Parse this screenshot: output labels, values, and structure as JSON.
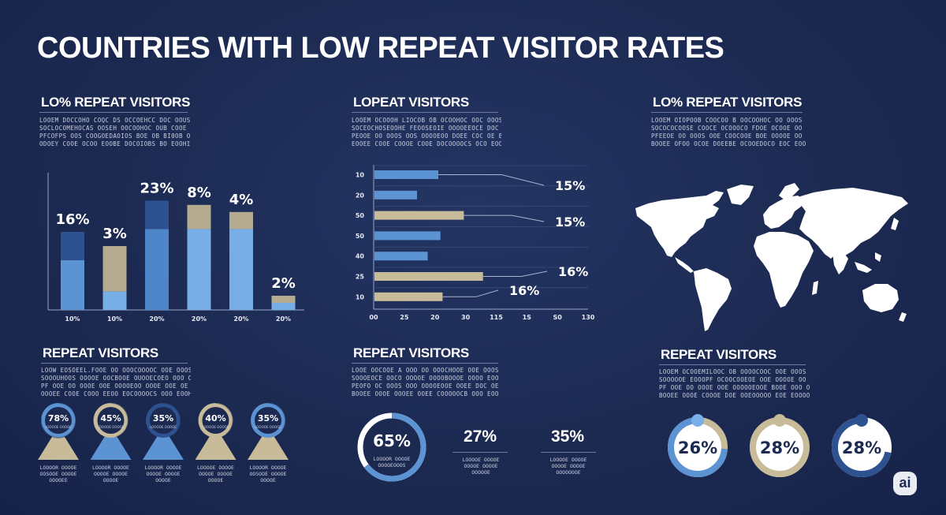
{
  "title": "COUNTRIES WITH LOW REPEAT VISITOR RATES",
  "sections": {
    "top_left": {
      "heading": "LO% REPEAT VISITORS",
      "body": "LOOEM DOCCOHO COQC DS OCCOEHCC DOC OOUS HOH\nSOCLOCOMEHOCAS OOSEH OOCOOHOC OUB COOE OB\nPFCOFPS OOS COOGOEDAOIOS BOE OB BI0OB OS\nODOEY COOE OCOO EOOBE DOCOIOBS BO EOOHIS."
    },
    "top_mid": {
      "heading": "LOPEAT VISITORS",
      "body": "LOOEM OCOOOH LIOCOB OB OCOOHOC OOC OOOS FS BA\nSOCEOCHOSEOOHE FEOOSEOIE OOOOEEOCE DOC OO\nPEOOE OO OOOS OOS OOOOEOO DOEE COC OE BE\nEOOEE COOE COOOE COOE DOCOOOOCS OCO EOO MIX."
    },
    "top_right": {
      "heading": "LO% REPEAT VISITORS",
      "body": "LOOEM OIOPOOB COOCOO B OOCOOHOC OO OOOS FS\nSOCOCOCOOSE COOCE OCOOOCO FDOE OCOOE OO OS\nPFEEOE OO OOOS OOE COOCOOE BOE OOOOE OO DA\nBOOEE OFOO OCOE DOEEBE OCOOEDOCO EOC EOOM IX."
    },
    "bottom_left": {
      "heading": "REPEAT VISITORS",
      "body": "LOOW EOSOEEL.FOOE OO OOOCOOOOC OOE OOOS FOS\nSOOOUHOOS OOOOE OOCBOOE OUOOECOEO OOO OO BI\nPF OOE OO OOOE OOE OOOOEOO OOOE OOE OE DE\nOOOEE COOE COOO EEOO EOCOOOOCS OOO EOOHIS."
    },
    "bottom_mid": {
      "heading": "REPEAT VISITORS",
      "body": "LOOE OOCOOE A OOO OO OOOCHOOE OOE OOOS FOS\nSOOOEOCE OOCO OOOOE OOOOBOOOE OOOO EOO OO BA\nPEOFO OC OOOS OOO OOOOEOOE OOEE DOC OE BE\nBOOEE OOOE OOOEE OOEE COOOOOCB OOO EOO OOIX."
    },
    "bottom_right": {
      "heading": "REPEAT VISITORS",
      "body": "LOOEM OCOOEMILOOC OB OOOOCOOC OOE OOOS FOS\nSOOOOOE EOOOPF OCOOCOOEOE OOE OOOOE OO OE BS\nPF OOE OO OOOE OOE OOOOOEOOE BOOE OOO OE DE\nBOOEE OOOE COOOE DOE OOEOOOOO EOE EOOOOOE."
    }
  },
  "chart_data": [
    {
      "type": "bar",
      "title": "",
      "categories": [
        "10%",
        "10%",
        "20%",
        "20%",
        "20%",
        "20%"
      ],
      "data_labels": [
        "16%",
        "3%",
        "23%",
        "8%",
        "4%",
        "2%"
      ],
      "series": [
        {
          "values": [
            35,
            13,
            57,
            57,
            57,
            5
          ]
        },
        {
          "values": [
            20,
            32,
            20,
            17,
            12,
            5
          ]
        }
      ],
      "series_colors": [
        "#5c93d3",
        "#2e5290"
      ],
      "segment_colors": [
        [
          "#5c93d3",
          "#2e5290"
        ],
        [
          "#78aee6",
          "#b5ab8e"
        ],
        [
          "#4f86c9",
          "#2e5290"
        ],
        [
          "#78aee6",
          "#b5ab8e"
        ],
        [
          "#78aee6",
          "#b5ab8e"
        ],
        [
          "#78aee6",
          "#b5ab8e"
        ]
      ],
      "ylim": [
        0,
        100
      ],
      "grid": false
    },
    {
      "type": "bar",
      "orientation": "horizontal",
      "title": "",
      "categories": [
        "10",
        "20",
        "50",
        "50",
        "40",
        "25",
        "10"
      ],
      "values": [
        30,
        20,
        42,
        31,
        25,
        51,
        32
      ],
      "bar_colors": [
        "#5c93d3",
        "#5c93d3",
        "#c8bb9a",
        "#5c93d3",
        "#5c93d3",
        "#c8bb9a",
        "#c8bb9a"
      ],
      "x_tick_labels": [
        "00",
        "25",
        "20",
        "30",
        "115",
        "1S",
        "S0",
        "130"
      ],
      "annotations": [
        {
          "text": "15%",
          "bar_index": 0
        },
        {
          "text": "15%",
          "bar_index": 2
        },
        {
          "text": "16%",
          "bar_index": 5
        },
        {
          "text": "16%",
          "bar_index": 6
        }
      ],
      "grid": true
    },
    {
      "type": "donut",
      "items": [
        {
          "value": 78,
          "label": "78%",
          "caption": "LOOOOR OOOOE\nOOSOOE OOOOE\nOOOOEE",
          "ring": "#5c93d3",
          "cone": "#c8bb9a"
        },
        {
          "value": 45,
          "label": "45%",
          "caption": "LOOOOR OOOOE\nOOOOE OOOOE\nOOOOE",
          "ring": "#c8bb9a",
          "cone": "#5c93d3"
        },
        {
          "value": 35,
          "label": "35%",
          "caption": "LOOOOR OOOOE\nOOOOE OOOOE\nOOOOE",
          "ring": "#2e5290",
          "cone": "#5c93d3"
        },
        {
          "value": 40,
          "label": "40%",
          "caption": "LOOOOE OOOOE\nOOOOE OOOOE\nOOOOE",
          "ring": "#c8bb9a",
          "cone": "#c8bb9a"
        },
        {
          "value": 35,
          "label": "35%",
          "caption": "LOOOOR OOOOE\nOOSOOE OOOOE\nOOOOE",
          "ring": "#5c93d3",
          "cone": "#c8bb9a"
        }
      ]
    },
    {
      "type": "donut",
      "items": [
        {
          "value": 65,
          "label": "65%",
          "caption": "LOOOOR OOOOE\nOOOOEOOOS",
          "ring": "#5c93d3"
        }
      ],
      "stats": [
        {
          "label": "27%",
          "caption": "LOOOOE OOOOE\nOOOOE OOOOE\nOOOOOE"
        },
        {
          "label": "35%",
          "caption": "LOOOOE OOOOE\nOOOOE OOOOE\nOOOOOOOE"
        }
      ]
    },
    {
      "type": "donut",
      "items": [
        {
          "value": 26,
          "label": "26%",
          "ring": "#5c93d3",
          "track": "#c8bb9a",
          "dot": "#7aaee6"
        },
        {
          "value": 28,
          "label": "28%",
          "ring": "#c8bb9a",
          "track": "#c8bb9a",
          "dot": "#c8bb9a"
        },
        {
          "value": 28,
          "label": "28%",
          "ring": "#2e5290",
          "track": "#ffffff",
          "dot": "#2e5290"
        }
      ]
    }
  ],
  "badge": "ai"
}
